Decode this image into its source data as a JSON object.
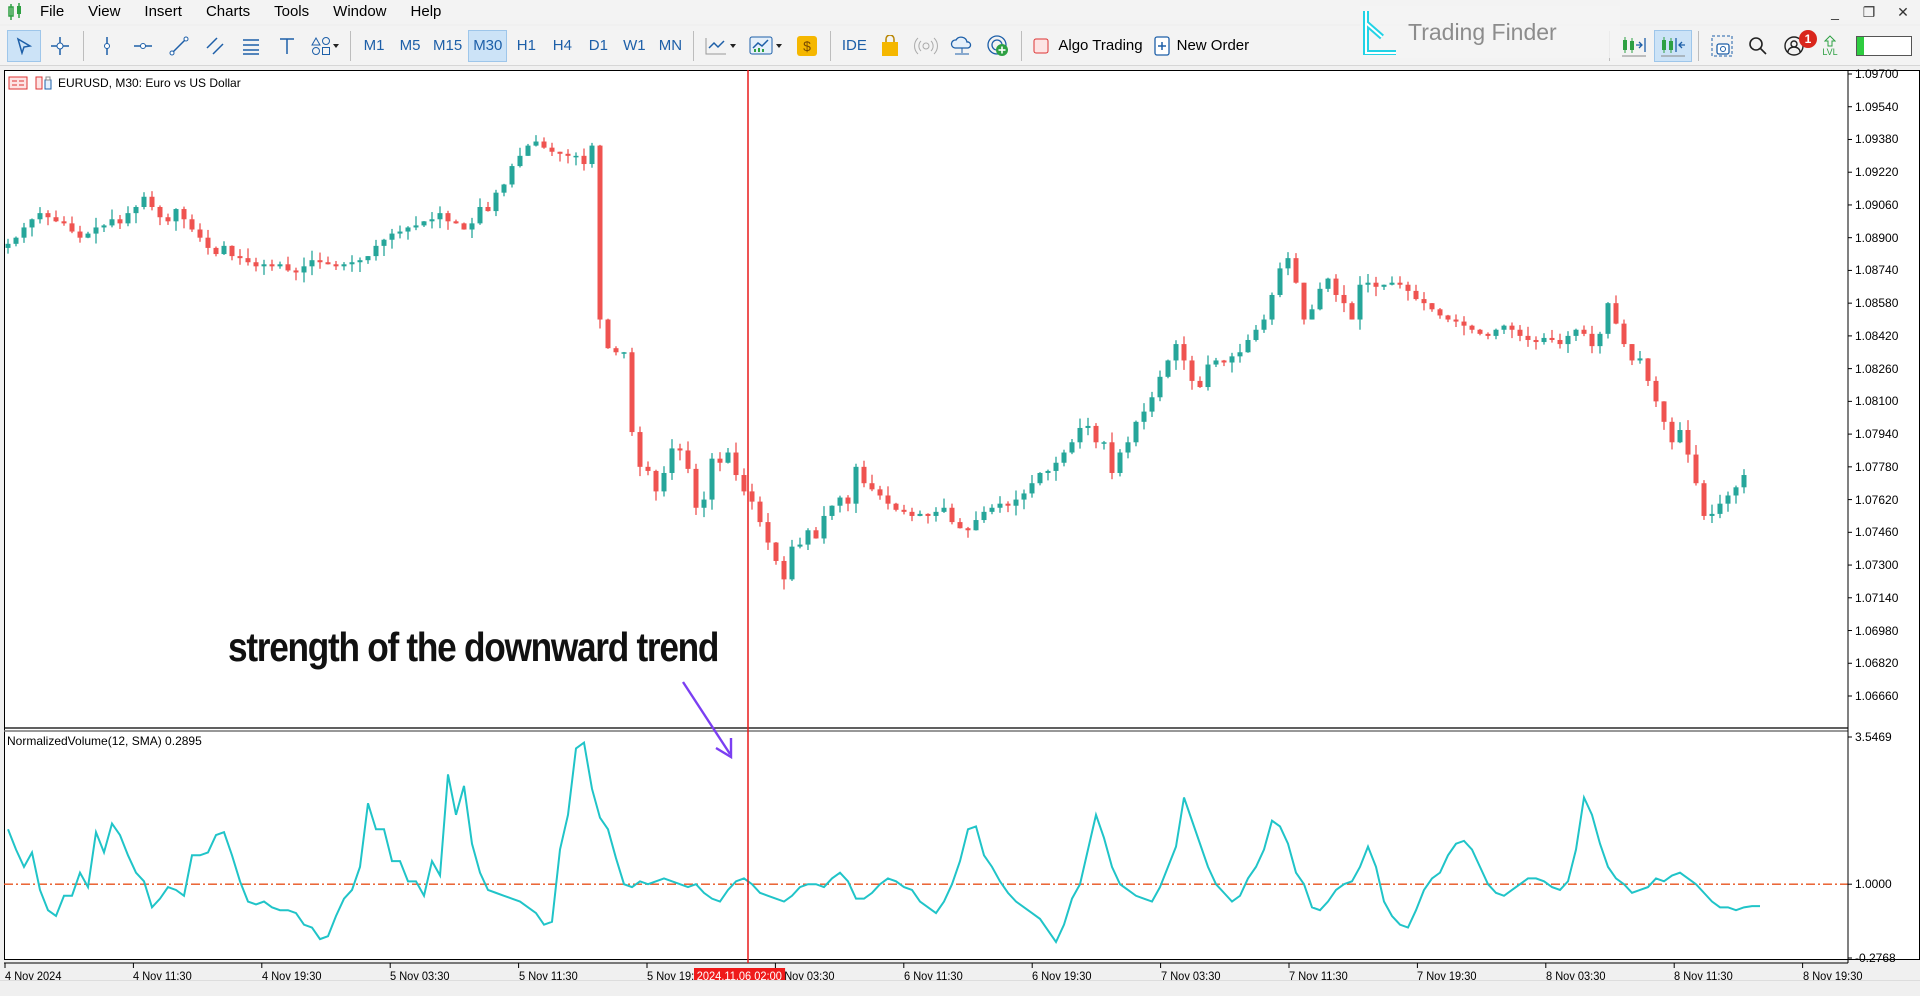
{
  "menu": {
    "items": [
      "File",
      "View",
      "Insert",
      "Charts",
      "Tools",
      "Window",
      "Help"
    ]
  },
  "window_controls": {
    "minimize": "_",
    "restore": "❐",
    "close": "✕"
  },
  "toolbar": {
    "timeframes": [
      "M1",
      "M5",
      "M15",
      "M30",
      "H1",
      "H4",
      "D1",
      "W1",
      "MN"
    ],
    "active_timeframe": "M30",
    "ide_label": "IDE",
    "algo_trading_label": "Algo Trading",
    "new_order_label": "New Order",
    "notification_count": "1",
    "lvl_label": "LVL"
  },
  "brand": {
    "name": "Trading Finder"
  },
  "chart": {
    "title": "EURUSD, M30:  Euro vs US Dollar",
    "indicator_title": "NormalizedVolume(12, SMA) 0.2895",
    "annotation": "strength of the downward trend",
    "crosshair_time": "2024.11.06 02:00",
    "colors": {
      "bull": "#26a69a",
      "bear": "#ef5350",
      "indicator": "#20c4c8",
      "level": "#e8531e",
      "crosshair": "#e81c1c",
      "arrow": "#7b3ff2"
    },
    "price_axis": [
      "1.09700",
      "1.09540",
      "1.09380",
      "1.09220",
      "1.09060",
      "1.08900",
      "1.08740",
      "1.08580",
      "1.08420",
      "1.08260",
      "1.08100",
      "1.07940",
      "1.07780",
      "1.07620",
      "1.07460",
      "1.07300",
      "1.07140",
      "1.06980",
      "1.06820",
      "1.06660"
    ],
    "indicator_axis": [
      "3.5469",
      "1.0000",
      "-0.2768"
    ],
    "time_axis": [
      "4 Nov 2024",
      "4 Nov 11:30",
      "4 Nov 19:30",
      "5 Nov 03:30",
      "5 Nov 11:30",
      "5 Nov 19:30",
      "6 Nov 03:30",
      "6 Nov 11:30",
      "6 Nov 19:30",
      "7 Nov 03:30",
      "7 Nov 11:30",
      "7 Nov 19:30",
      "8 Nov 03:30",
      "8 Nov 11:30",
      "8 Nov 19:30"
    ]
  },
  "chart_data": {
    "type": "candlestick",
    "symbol": "EURUSD",
    "timeframe": "M30",
    "ylim": [
      1.0666,
      1.097
    ],
    "closes": [
      1.0887,
      1.089,
      1.0895,
      1.0899,
      1.0902,
      1.09,
      1.0898,
      1.0897,
      1.0893,
      1.089,
      1.0892,
      1.0895,
      1.0896,
      1.0899,
      1.0897,
      1.0902,
      1.0905,
      1.091,
      1.0905,
      1.09,
      1.0898,
      1.0904,
      1.0899,
      1.0894,
      1.089,
      1.0885,
      1.0882,
      1.0886,
      1.0881,
      1.088,
      1.0878,
      1.0876,
      1.0877,
      1.0876,
      1.0877,
      1.0874,
      1.0873,
      1.0876,
      1.0879,
      1.0878,
      1.0877,
      1.0876,
      1.0877,
      1.0878,
      1.0879,
      1.0881,
      1.0886,
      1.0889,
      1.0892,
      1.0893,
      1.0895,
      1.0896,
      1.0898,
      1.0899,
      1.0902,
      1.0898,
      1.0897,
      1.0894,
      1.0897,
      1.0905,
      1.0903,
      1.0912,
      1.0916,
      1.0925,
      1.093,
      1.0935,
      1.0937,
      1.0934,
      1.0932,
      1.0931,
      1.093,
      1.093,
      1.0926,
      1.0935,
      1.085,
      1.0836,
      1.0834,
      1.0834,
      1.0795,
      1.0778,
      1.0776,
      1.0766,
      1.0775,
      1.0787,
      1.0786,
      1.0777,
      1.0758,
      1.0762,
      1.0782,
      1.078,
      1.0785,
      1.0774,
      1.0766,
      1.0761,
      1.0751,
      1.0741,
      1.0732,
      1.0723,
      1.0739,
      1.074,
      1.0747,
      1.0743,
      1.0754,
      1.0759,
      1.0763,
      1.076,
      1.0778,
      1.077,
      1.0767,
      1.0764,
      1.076,
      1.0757,
      1.0756,
      1.0754,
      1.0755,
      1.0754,
      1.0756,
      1.0758,
      1.0751,
      1.0748,
      1.0747,
      1.0752,
      1.0756,
      1.0758,
      1.076,
      1.0759,
      1.0762,
      1.0765,
      1.077,
      1.0775,
      1.0776,
      1.078,
      1.0785,
      1.079,
      1.0797,
      1.0798,
      1.079,
      1.079,
      1.0775,
      1.0785,
      1.079,
      1.08,
      1.0805,
      1.0812,
      1.0822,
      1.083,
      1.0838,
      1.083,
      1.082,
      1.0817,
      1.0828,
      1.083,
      1.0829,
      1.0832,
      1.0834,
      1.084,
      1.0845,
      1.085,
      1.0862,
      1.0875,
      1.088,
      1.0868,
      1.085,
      1.0855,
      1.0865,
      1.087,
      1.0862,
      1.0858,
      1.085,
      1.0867,
      1.0868,
      1.0866,
      1.0867,
      1.0868,
      1.0867,
      1.0864,
      1.086,
      1.0858,
      1.0855,
      1.0852,
      1.085,
      1.0849,
      1.0847,
      1.0845,
      1.0843,
      1.0842,
      1.0845,
      1.0847,
      1.0845,
      1.0842,
      1.084,
      1.0839,
      1.0841,
      1.084,
      1.0838,
      1.0842,
      1.0845,
      1.0843,
      1.0837,
      1.0843,
      1.0858,
      1.0848,
      1.0838,
      1.083,
      1.0831,
      1.082,
      1.081,
      1.08,
      1.079,
      1.0796,
      1.0784,
      1.077,
      1.0754,
      1.0755,
      1.076,
      1.0764,
      1.0768,
      1.0774
    ],
    "indicator": {
      "name": "NormalizedVolume(12, SMA)",
      "current_value": 0.2895,
      "level": 1.0,
      "ylim": [
        -0.2768,
        3.5469
      ],
      "values": [
        1.95,
        1.6,
        1.3,
        1.55,
        0.9,
        0.55,
        0.45,
        0.8,
        0.8,
        1.2,
        0.95,
        1.9,
        1.55,
        2.05,
        1.85,
        1.5,
        1.2,
        1.05,
        0.6,
        0.75,
        0.95,
        0.9,
        0.8,
        1.5,
        1.5,
        1.55,
        1.85,
        1.9,
        1.5,
        1.05,
        0.7,
        0.65,
        0.7,
        0.6,
        0.55,
        0.55,
        0.5,
        0.3,
        0.25,
        0.05,
        0.1,
        0.45,
        0.75,
        0.9,
        1.3,
        2.4,
        1.95,
        1.95,
        1.4,
        1.4,
        1.05,
        1.05,
        0.8,
        1.4,
        1.15,
        2.9,
        2.2,
        2.7,
        1.7,
        1.2,
        0.9,
        0.85,
        0.8,
        0.75,
        0.7,
        0.6,
        0.5,
        0.3,
        0.35,
        1.6,
        2.2,
        3.35,
        3.45,
        2.65,
        2.15,
        1.95,
        1.45,
        1.0,
        0.95,
        1.05,
        1.0,
        1.05,
        1.1,
        1.05,
        1.0,
        0.95,
        1.0,
        0.85,
        0.75,
        0.7,
        0.9,
        1.05,
        1.1,
        1.0,
        0.85,
        0.8,
        0.75,
        0.7,
        0.8,
        0.95,
        1.0,
        1.0,
        0.95,
        1.1,
        1.2,
        1.05,
        0.75,
        0.75,
        0.85,
        1.0,
        1.1,
        1.05,
        0.95,
        0.9,
        0.7,
        0.6,
        0.5,
        0.7,
        1.0,
        1.4,
        1.95,
        2.0,
        1.5,
        1.3,
        1.05,
        0.85,
        0.7,
        0.6,
        0.5,
        0.4,
        0.2,
        0.0,
        0.3,
        0.75,
        1.0,
        1.6,
        2.2,
        1.8,
        1.3,
        1.0,
        0.9,
        0.8,
        0.75,
        0.7,
        0.95,
        1.3,
        1.65,
        2.5,
        2.1,
        1.7,
        1.3,
        1.0,
        0.85,
        0.7,
        0.8,
        1.1,
        1.3,
        1.6,
        2.1,
        2.0,
        1.7,
        1.2,
        1.0,
        0.6,
        0.55,
        0.7,
        0.9,
        1.0,
        1.05,
        1.3,
        1.65,
        1.3,
        0.7,
        0.45,
        0.3,
        0.25,
        0.55,
        0.9,
        1.1,
        1.2,
        1.5,
        1.7,
        1.75,
        1.6,
        1.3,
        1.0,
        0.85,
        0.8,
        0.9,
        1.0,
        1.1,
        1.1,
        1.05,
        0.95,
        0.9,
        1.05,
        1.6,
        2.5,
        2.2,
        1.7,
        1.3,
        1.1,
        1.0,
        0.85,
        0.9,
        0.95,
        1.1,
        1.05,
        1.15,
        1.2,
        1.1,
        1.0,
        0.85,
        0.7,
        0.6,
        0.6,
        0.55,
        0.6,
        0.62,
        0.62
      ]
    }
  }
}
